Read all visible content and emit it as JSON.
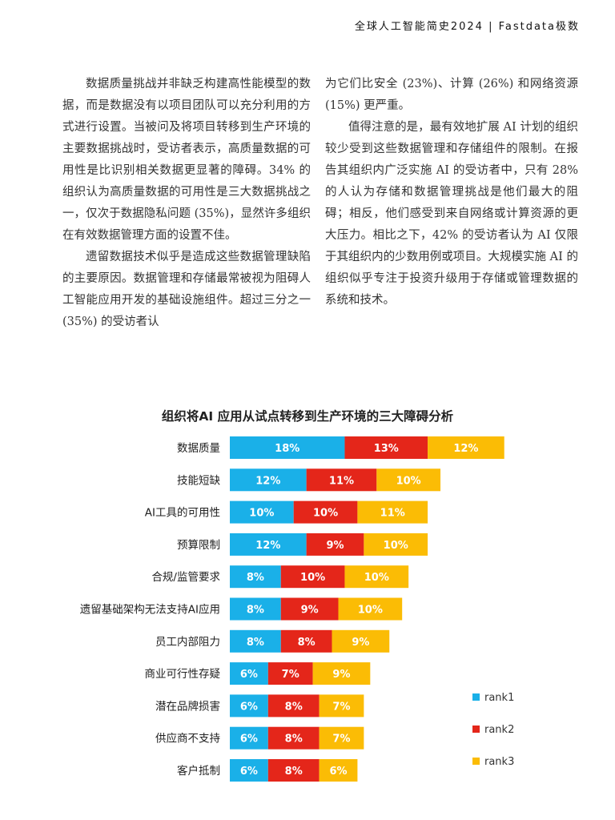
{
  "header": {
    "title": "全球人工智能简史2024 | Fastdata极数"
  },
  "left_column": {
    "paragraphs": [
      "数据质量挑战并非缺乏构建高性能模型的数据，而是数据没有以项目团队可以充分利用的方式进行设置。当被问及将项目转移到生产环境的主要数据挑战时，受访者表示，高质量数据的可用性是比识别相关数据更显著的障碍。34% 的组织认为高质量数据的可用性是三大数据挑战之一，仅次于数据隐私问题 (35%)，显然许多组织在有效数据管理方面的设置不佳。",
      "遗留数据技术似乎是造成这些数据管理缺陷的主要原因。数据管理和存储最常被视为阻碍人工智能应用开发的基础设施组件。超过三分之一 (35%) 的受访者认"
    ]
  },
  "right_column": {
    "paragraphs": [
      "为它们比安全 (23%)、计算 (26%) 和网络资源 (15%) 更严重。",
      "值得注意的是，最有效地扩展 AI 计划的组织较少受到这些数据管理和存储组件的限制。在报告其组织内广泛实施 AI 的受访者中，只有 28% 的人认为存储和数据管理挑战是他们最大的阻碍；相反，他们感受到来自网络或计算资源的更大压力。相比之下，42% 的受访者认为 AI 仅限于其组织内的少数用例或项目。大规模实施 AI 的组织似乎专注于投资升级用于存储或管理数据的系统和技术。"
    ]
  },
  "chart_data": {
    "type": "bar",
    "orientation": "horizontal",
    "stacked": true,
    "title": "组织将AI 应用从试点转移到生产环境的三大障碍分析",
    "categories": [
      "数据质量",
      "技能短缺",
      "AI工具的可用性",
      "预算限制",
      "合规/监管要求",
      "遗留基础架构无法支持AI应用",
      "员工内部阻力",
      "商业可行性存疑",
      "潜在品牌损害",
      "供应商不支持",
      "客户抵制"
    ],
    "series": [
      {
        "name": "rank1",
        "color": "#1ab0e8",
        "values": [
          18,
          12,
          10,
          12,
          8,
          8,
          8,
          6,
          6,
          6,
          6
        ],
        "labels": [
          "18%",
          "12%",
          "10%",
          "12%",
          "8%",
          "8%",
          "8%",
          "6%",
          "6%",
          "6%",
          "6%"
        ]
      },
      {
        "name": "rank2",
        "color": "#e4261a",
        "values": [
          13,
          11,
          10,
          9,
          10,
          9,
          8,
          7,
          8,
          8,
          8
        ],
        "labels": [
          "13%",
          "11%",
          "10%",
          "9%",
          "10%",
          "9%",
          "8%",
          "7%",
          "8%",
          "8%",
          "8%"
        ]
      },
      {
        "name": "rank3",
        "color": "#fbbc05",
        "values": [
          12,
          10,
          11,
          10,
          10,
          10,
          9,
          9,
          7,
          7,
          6
        ],
        "labels": [
          "12%",
          "10%",
          "11%",
          "10%",
          "10%",
          "10%",
          "9%",
          "9%",
          "7%",
          "7%",
          "6%"
        ]
      }
    ],
    "legend": "right",
    "grid": false
  }
}
